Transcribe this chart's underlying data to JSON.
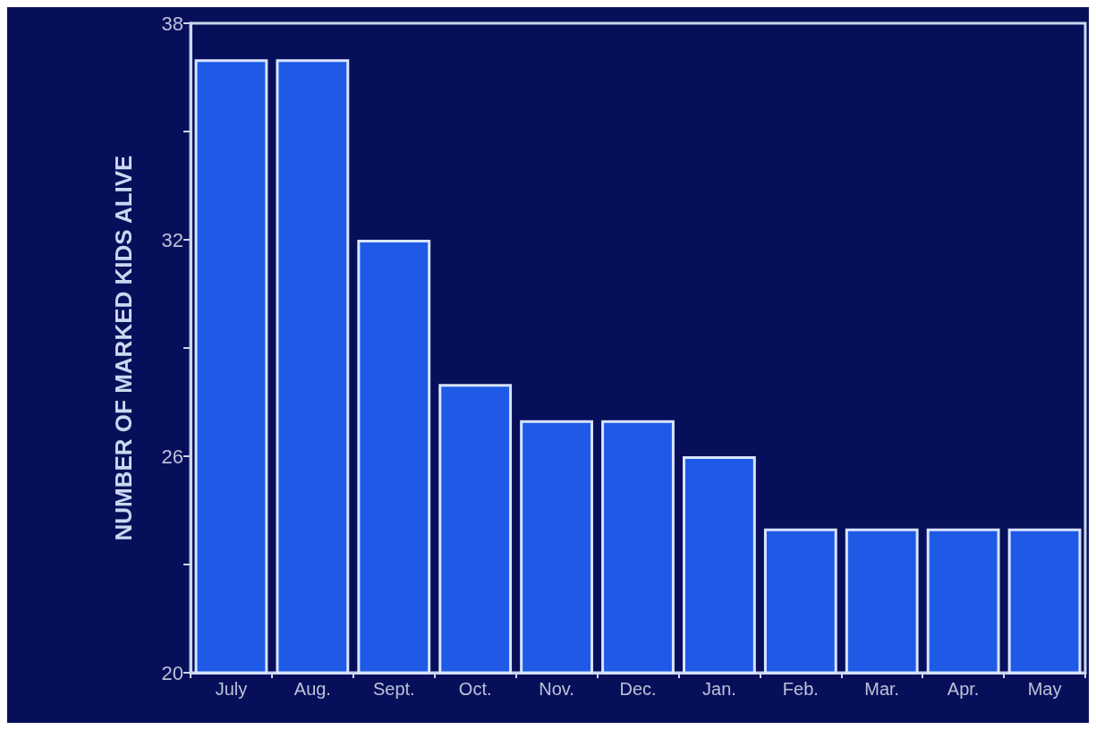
{
  "chart_data": {
    "type": "bar",
    "ylabel": "NUMBER OF MARKED KIDS ALIVE",
    "categories": [
      "July",
      "Aug.",
      "Sept.",
      "Oct.",
      "Nov.",
      "Dec.",
      "Jan.",
      "Feb.",
      "Mar.",
      "Apr.",
      "May"
    ],
    "values": [
      37,
      37,
      32,
      28,
      27,
      27,
      26,
      24,
      24,
      24,
      24
    ],
    "color": "#1e5ae6",
    "ylim": [
      20,
      38
    ],
    "yticks": [
      20,
      {
        "value": 23,
        "label": null
      },
      26,
      {
        "value": 29,
        "label": null
      },
      32,
      {
        "value": 35,
        "label": null
      },
      38
    ],
    "grid": false
  }
}
